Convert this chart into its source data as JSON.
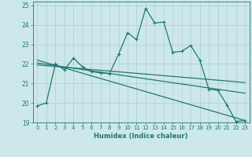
{
  "xlabel": "Humidex (Indice chaleur)",
  "xlim": [
    -0.5,
    23.5
  ],
  "ylim": [
    19,
    25.2
  ],
  "yticks": [
    19,
    20,
    21,
    22,
    23,
    24,
    25
  ],
  "xticks": [
    0,
    1,
    2,
    3,
    4,
    5,
    6,
    7,
    8,
    9,
    10,
    11,
    12,
    13,
    14,
    15,
    16,
    17,
    18,
    19,
    20,
    21,
    22,
    23
  ],
  "bg_color": "#cde8ea",
  "grid_color": "#aacfd2",
  "line_color": "#1e7872",
  "series": [
    {
      "x": [
        0,
        1,
        2,
        3,
        4,
        5,
        6,
        7,
        8,
        9,
        10,
        11,
        12,
        13,
        14,
        15,
        16,
        17,
        18,
        19,
        20,
        21,
        22,
        23
      ],
      "y": [
        19.85,
        20.0,
        22.0,
        21.7,
        22.3,
        21.85,
        21.6,
        21.55,
        21.5,
        22.5,
        23.6,
        23.25,
        24.85,
        24.1,
        24.15,
        22.6,
        22.65,
        22.95,
        22.2,
        20.7,
        20.65,
        19.9,
        19.05,
        19.1
      ],
      "marker": "+"
    },
    {
      "x": [
        0,
        23
      ],
      "y": [
        21.95,
        21.05
      ],
      "marker": null
    },
    {
      "x": [
        0,
        23
      ],
      "y": [
        22.05,
        20.5
      ],
      "marker": null
    },
    {
      "x": [
        0,
        23
      ],
      "y": [
        22.2,
        19.1
      ],
      "marker": null
    }
  ]
}
